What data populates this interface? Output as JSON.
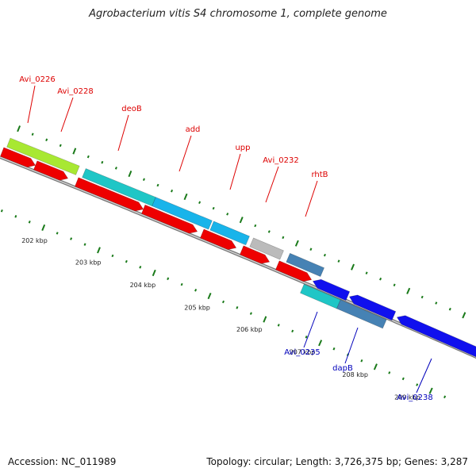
{
  "title": "Agrobacterium vitis S4 chromosome 1, complete genome",
  "footer": {
    "accession": "Accession: NC_011989",
    "summary": "Topology: circular; Length: 3,726,375 bp; Genes: 3,287"
  },
  "colors": {
    "label_forward": "#dd0000",
    "label_reverse": "#0000bb",
    "tick": "#1a7a1a",
    "backbone": "#888888",
    "cds_forward": "#ee0000",
    "cds_reverse": "#1010ee"
  },
  "scale_labels": [
    "202 kbp",
    "203 kbp",
    "204 kbp",
    "205 kbp",
    "206 kbp",
    "207 kbp",
    "208 kbp",
    "209 kbp"
  ],
  "genes_forward": [
    {
      "name": "Avi_0226",
      "color": "#a8e832"
    },
    {
      "name": "Avi_0228",
      "color": "#a8e832"
    },
    {
      "name": "deoB",
      "color": "#1fc6c6"
    },
    {
      "name": "add",
      "color": "#18b4ea"
    },
    {
      "name": "upp",
      "color": "#18b4ea"
    },
    {
      "name": "Avi_0232",
      "color": "#bbbbbb"
    },
    {
      "name": "rhtB",
      "color": "#4682b4"
    }
  ],
  "genes_reverse": [
    {
      "name": "Avi_0235",
      "color": "#1fc6c6"
    },
    {
      "name": "dapB",
      "color": "#4682b4"
    },
    {
      "name": "Avi_0238",
      "color": "#0000ee"
    }
  ]
}
